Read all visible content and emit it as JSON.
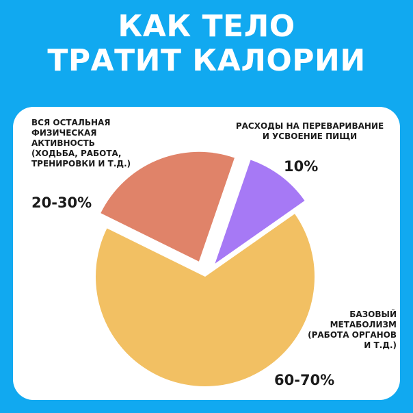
{
  "header": {
    "title_line1": "КАК ТЕЛО",
    "title_line2": "ТРАТИТ КАЛОРИИ"
  },
  "chart_data": {
    "type": "pie",
    "title": "КАК ТЕЛО ТРАТИТ КАЛОРИИ",
    "slices": [
      {
        "label": "Базовый\nметаболизм\n(работа органов\nи т.д.)",
        "value_text": "60-70%",
        "value": 67,
        "color": "#f2c063"
      },
      {
        "label": "Вся остальная\nфизическая\nактивность\n(ходьба, работа,\nтренировки и т.д.)",
        "value_text": "20-30%",
        "value": 23,
        "color": "#e08369"
      },
      {
        "label": "Расходы на переваривание\nи усвоение пищи",
        "value_text": "10%",
        "value": 10,
        "color": "#a679f5"
      }
    ]
  }
}
